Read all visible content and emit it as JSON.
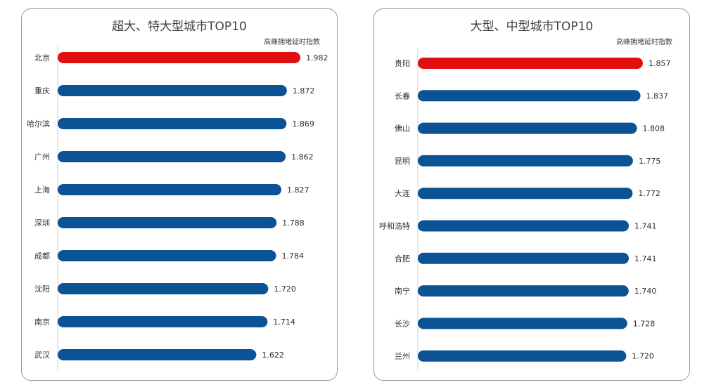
{
  "chart_data": [
    {
      "type": "bar",
      "orientation": "horizontal",
      "title": "超大、特大型城市TOP10",
      "value_label": "高峰拥堵延时指数",
      "categories": [
        "北京",
        "重庆",
        "哈尔滨",
        "广州",
        "上海",
        "深圳",
        "成都",
        "沈阳",
        "南京",
        "武汉"
      ],
      "values": [
        1.982,
        1.872,
        1.869,
        1.862,
        1.827,
        1.788,
        1.784,
        1.72,
        1.714,
        1.622
      ],
      "value_labels": [
        "1.982",
        "1.872",
        "1.869",
        "1.862",
        "1.827",
        "1.788",
        "1.784",
        "1.720",
        "1.714",
        "1.622"
      ],
      "xlim": [
        0,
        1.982
      ],
      "highlight_index": 0,
      "colors": {
        "highlight": "#e01010",
        "bar": "#0b5394"
      }
    },
    {
      "type": "bar",
      "orientation": "horizontal",
      "title": "大型、中型城市TOP10",
      "value_label": "高峰拥堵延时指数",
      "categories": [
        "贵阳",
        "长春",
        "佛山",
        "昆明",
        "大连",
        "呼和浩特",
        "合肥",
        "南宁",
        "长沙",
        "兰州"
      ],
      "values": [
        1.857,
        1.837,
        1.808,
        1.775,
        1.772,
        1.741,
        1.741,
        1.74,
        1.728,
        1.72
      ],
      "value_labels": [
        "1.857",
        "1.837",
        "1.808",
        "1.775",
        "1.772",
        "1.741",
        "1.741",
        "1.740",
        "1.728",
        "1.720"
      ],
      "xlim": [
        0,
        1.857
      ],
      "highlight_index": 0,
      "colors": {
        "highlight": "#e01010",
        "bar": "#0b5394"
      }
    }
  ]
}
